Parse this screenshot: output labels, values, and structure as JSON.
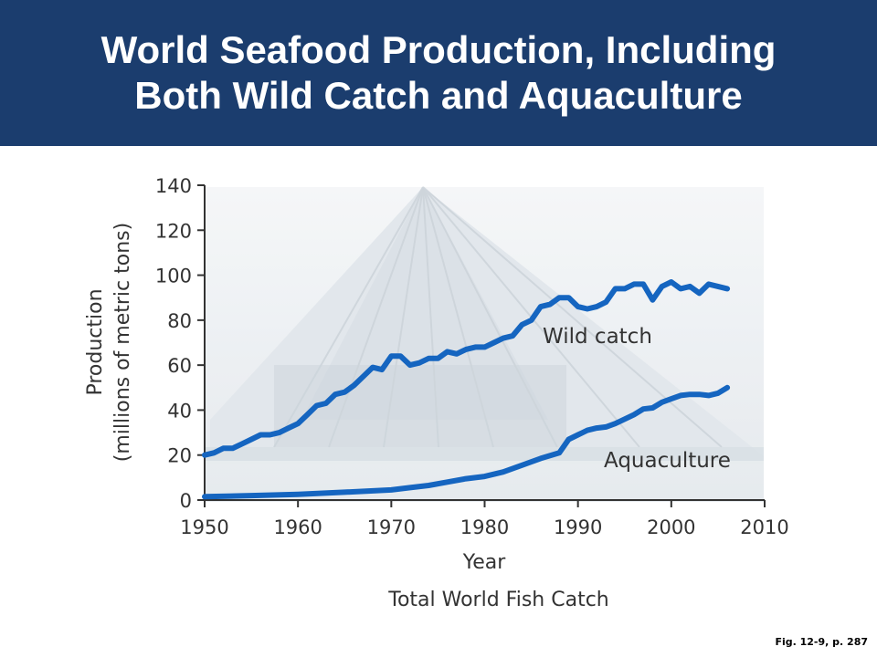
{
  "slide": {
    "title_line1": "World Seafood Production, Including",
    "title_line2": "Both Wild Catch and Aquaculture",
    "fig_ref": "Fig. 12-9, p. 287"
  },
  "colors": {
    "header_bg": "#1b3d6e",
    "series": "#1565c0",
    "axis": "#333333"
  },
  "chart_data": {
    "type": "line",
    "title": "Total World Fish Catch",
    "xlabel": "Year",
    "ylabel_line1": "Production",
    "ylabel_line2": "(millions of metric tons)",
    "xlim": [
      1950,
      2010
    ],
    "ylim": [
      0,
      140
    ],
    "x_ticks": [
      "1950",
      "1960",
      "1970",
      "1980",
      "1990",
      "2000",
      "2010"
    ],
    "y_ticks": [
      "0",
      "20",
      "40",
      "60",
      "80",
      "100",
      "120",
      "140"
    ],
    "grid": false,
    "legend": "inline labels",
    "series": [
      {
        "name": "Wild catch",
        "x": [
          1950,
          1951,
          1952,
          1953,
          1954,
          1955,
          1956,
          1957,
          1958,
          1959,
          1960,
          1961,
          1962,
          1963,
          1964,
          1965,
          1966,
          1967,
          1968,
          1969,
          1970,
          1971,
          1972,
          1973,
          1974,
          1975,
          1976,
          1977,
          1978,
          1979,
          1980,
          1981,
          1982,
          1983,
          1984,
          1985,
          1986,
          1987,
          1988,
          1989,
          1990,
          1991,
          1992,
          1993,
          1994,
          1995,
          1996,
          1997,
          1998,
          1999,
          2000,
          2001,
          2002,
          2003,
          2004,
          2005,
          2006
        ],
        "values": [
          20,
          21,
          23,
          23,
          25,
          27,
          29,
          29,
          30,
          32,
          34,
          38,
          42,
          43,
          47,
          48,
          51,
          55,
          59,
          58,
          64,
          64,
          60,
          61,
          63,
          63,
          66,
          65,
          67,
          68,
          68,
          70,
          72,
          73,
          78,
          80,
          86,
          87,
          90,
          90,
          86,
          85,
          86,
          88,
          94,
          94,
          96,
          96,
          89,
          95,
          97,
          94,
          95,
          92,
          96,
          95,
          94
        ]
      },
      {
        "name": "Aquaculture",
        "x": [
          1950,
          1955,
          1960,
          1965,
          1970,
          1972,
          1974,
          1976,
          1978,
          1980,
          1982,
          1984,
          1986,
          1988,
          1989,
          1990,
          1991,
          1992,
          1993,
          1994,
          1995,
          1996,
          1997,
          1998,
          1999,
          2000,
          2001,
          2002,
          2003,
          2004,
          2005,
          2006
        ],
        "values": [
          1.5,
          2,
          2.5,
          3.5,
          4.5,
          5.5,
          6.5,
          8,
          9.5,
          10.5,
          12.5,
          15.5,
          18.5,
          21,
          27,
          29,
          31,
          32,
          32.5,
          34,
          36,
          38,
          40.5,
          41,
          43.5,
          45,
          46.5,
          47,
          47,
          46.5,
          47.5,
          50
        ]
      }
    ]
  }
}
